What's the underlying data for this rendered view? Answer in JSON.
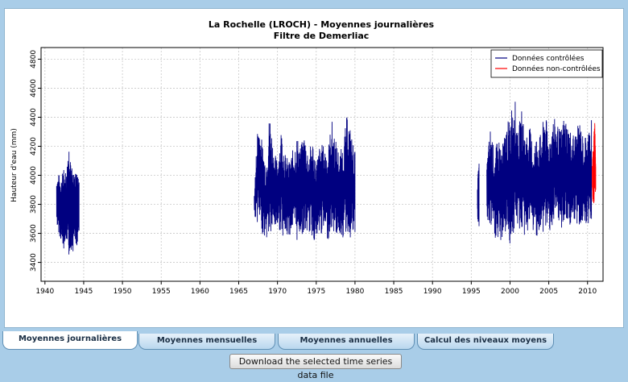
{
  "tabs": [
    {
      "label": "Moyennes journalières",
      "active": true
    },
    {
      "label": "Moyennes mensuelles",
      "active": false
    },
    {
      "label": "Moyennes annuelles",
      "active": false
    },
    {
      "label": "Calcul des niveaux moyens",
      "active": false
    }
  ],
  "download_label": "Download the selected time series data file",
  "colors": {
    "controlled": "#000080",
    "uncontrolled": "#ff0000"
  },
  "chart_data": {
    "type": "line",
    "title": "La Rochelle (LROCH) - Moyennes journalières",
    "subtitle": "Filtre de  Demerliac",
    "xlabel": "",
    "ylabel": "Hauteur d'eau (mm)",
    "xlim": [
      1939.5,
      2012
    ],
    "ylim": [
      3270,
      4880
    ],
    "x_ticks": [
      1940,
      1945,
      1950,
      1955,
      1960,
      1965,
      1970,
      1975,
      1980,
      1985,
      1990,
      1995,
      2000,
      2005,
      2010
    ],
    "y_ticks": [
      3400,
      3600,
      3800,
      4000,
      4200,
      4400,
      4600,
      4800
    ],
    "grid": true,
    "legend_position": "top-right",
    "series": [
      {
        "name": "Données contrôlées",
        "color": "#000080",
        "segments": [
          {
            "x": [
              1941.5,
              1941.8,
              1942.1,
              1942.4,
              1942.6,
              1942.9,
              1943.1,
              1943.3,
              1943.6,
              1943.8,
              1944.0,
              1944.2,
              1944.4
            ],
            "max": [
              3990,
              4010,
              3980,
              4060,
              4010,
              4100,
              4250,
              4100,
              4020,
              4000,
              4040,
              4010,
              3950
            ],
            "min": [
              3660,
              3600,
              3540,
              3480,
              3560,
              3520,
              3430,
              3500,
              3460,
              3580,
              3470,
              3540,
              3620
            ]
          },
          {
            "x": [
              1967.0,
              1967.5,
              1968.0,
              1968.5,
              1969.0,
              1969.5,
              1970.0,
              1970.5,
              1971.0,
              1971.5,
              1972.0,
              1972.5,
              1973.0,
              1973.5,
              1974.0,
              1974.5,
              1975.0,
              1975.5,
              1976.0,
              1976.5,
              1977.0,
              1977.5,
              1978.0,
              1978.5,
              1979.0,
              1979.5,
              1980.0
            ],
            "max": [
              3880,
              4420,
              4240,
              4100,
              4450,
              4180,
              4100,
              4340,
              4150,
              4100,
              4180,
              4280,
              4200,
              4300,
              4150,
              4260,
              4100,
              4220,
              4210,
              4180,
              4390,
              4250,
              4150,
              4230,
              4430,
              4300,
              4160
            ],
            "min": [
              3720,
              3660,
              3600,
              3560,
              3560,
              3610,
              3640,
              3600,
              3560,
              3580,
              3620,
              3540,
              3600,
              3580,
              3610,
              3560,
              3530,
              3580,
              3600,
              3550,
              3620,
              3580,
              3590,
              3560,
              3600,
              3550,
              3610
            ]
          },
          {
            "x": [
              1995.8,
              1996.0
            ],
            "max": [
              3980,
              4080
            ],
            "min": [
              3680,
              3650
            ]
          },
          {
            "x": [
              1997.0,
              1997.5,
              1998.0,
              1998.5,
              1999.0,
              1999.5,
              2000.0,
              2000.5,
              2001.0,
              2001.5,
              2002.0,
              2002.5,
              2003.0,
              2003.5,
              2004.0,
              2004.5,
              2005.0,
              2005.5,
              2006.0,
              2006.5,
              2007.0,
              2007.5,
              2008.0,
              2008.5,
              2009.0,
              2009.5,
              2010.0,
              2010.5
            ],
            "max": [
              4100,
              4350,
              4150,
              4270,
              4200,
              4350,
              4400,
              4620,
              4300,
              4450,
              4280,
              4350,
              4200,
              4300,
              4280,
              4460,
              4250,
              4400,
              4380,
              4300,
              4420,
              4350,
              4290,
              4300,
              4380,
              4250,
              4300,
              4380
            ],
            "min": [
              3660,
              3620,
              3570,
              3500,
              3560,
              3600,
              3520,
              3580,
              3640,
              3600,
              3560,
              3650,
              3600,
              3580,
              3560,
              3620,
              3610,
              3640,
              3650,
              3620,
              3660,
              3640,
              3670,
              3630,
              3650,
              3680,
              3660,
              3700
            ]
          }
        ]
      },
      {
        "name": "Données non-contrôlées",
        "color": "#ff0000",
        "segments": [
          {
            "x": [
              2010.6,
              2010.8,
              2010.95,
              2011.05
            ],
            "max": [
              4100,
              4250,
              4430,
              4060
            ],
            "min": [
              3820,
              3780,
              3860,
              3900
            ]
          }
        ]
      }
    ]
  }
}
